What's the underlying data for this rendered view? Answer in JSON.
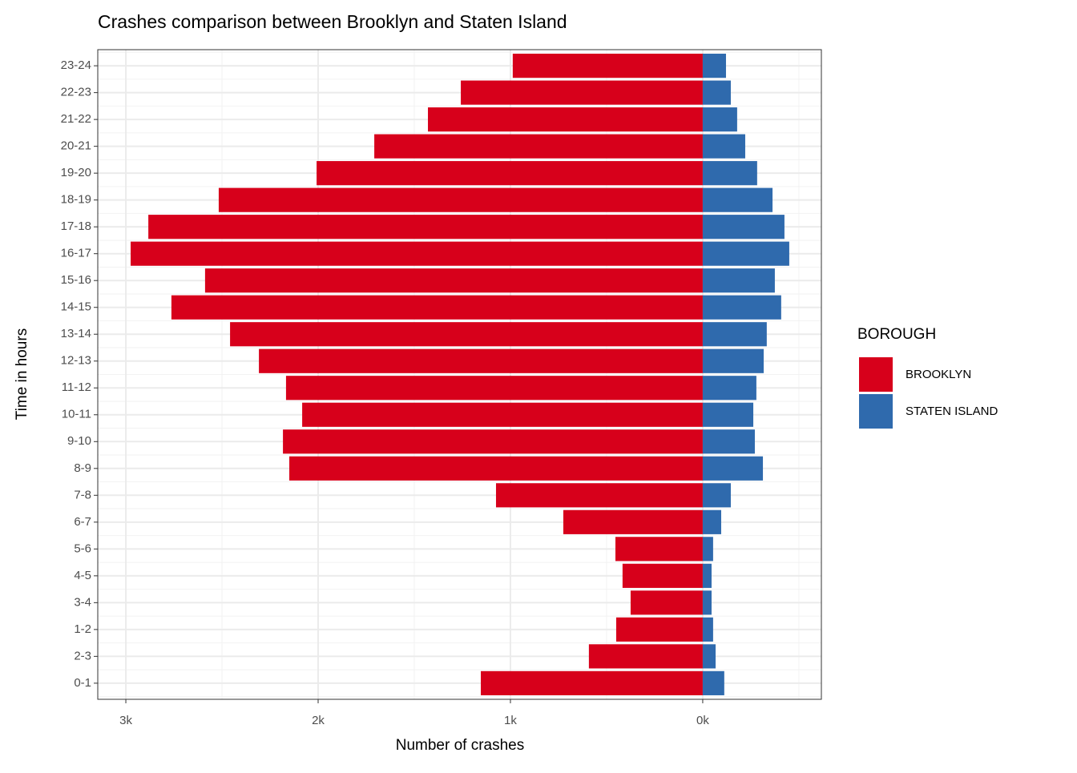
{
  "chart_data": {
    "type": "bar",
    "orientation": "horizontal",
    "title": "Crashes comparison between Brooklyn and Staten Island",
    "x_label": "Number of crashes",
    "y_label": "Time in hours",
    "legend_title": "BOROUGH",
    "legend_position": "right",
    "grid": true,
    "categories": [
      "0-1",
      "2-3",
      "1-2",
      "3-4",
      "4-5",
      "5-6",
      "6-7",
      "7-8",
      "8-9",
      "9-10",
      "10-11",
      "11-12",
      "12-13",
      "13-14",
      "14-15",
      "15-16",
      "16-17",
      "17-18",
      "18-19",
      "19-20",
      "20-21",
      "21-22",
      "22-23",
      "23-24"
    ],
    "series": [
      {
        "name": "BROOKLYN",
        "color": "#d7001b",
        "values": [
          -1154,
          -592,
          -450,
          -375,
          -417,
          -454,
          -725,
          -1075,
          -2150,
          -2183,
          -2083,
          -2167,
          -2308,
          -2458,
          -2763,
          -2588,
          -2975,
          -2883,
          -2517,
          -2008,
          -1708,
          -1429,
          -1258,
          -988
        ]
      },
      {
        "name": "STATEN ISLAND",
        "color": "#2f6aad",
        "values": [
          112,
          67,
          54,
          46,
          46,
          54,
          96,
          146,
          313,
          271,
          263,
          279,
          317,
          333,
          408,
          375,
          450,
          425,
          363,
          283,
          221,
          179,
          146,
          121
        ]
      }
    ],
    "xlim": [
      -3146,
      617
    ],
    "xticks": [
      {
        "value": -3000,
        "label": "3k"
      },
      {
        "value": -2000,
        "label": "2k"
      },
      {
        "value": -1000,
        "label": "1k"
      },
      {
        "value": 0,
        "label": "0k"
      }
    ]
  }
}
